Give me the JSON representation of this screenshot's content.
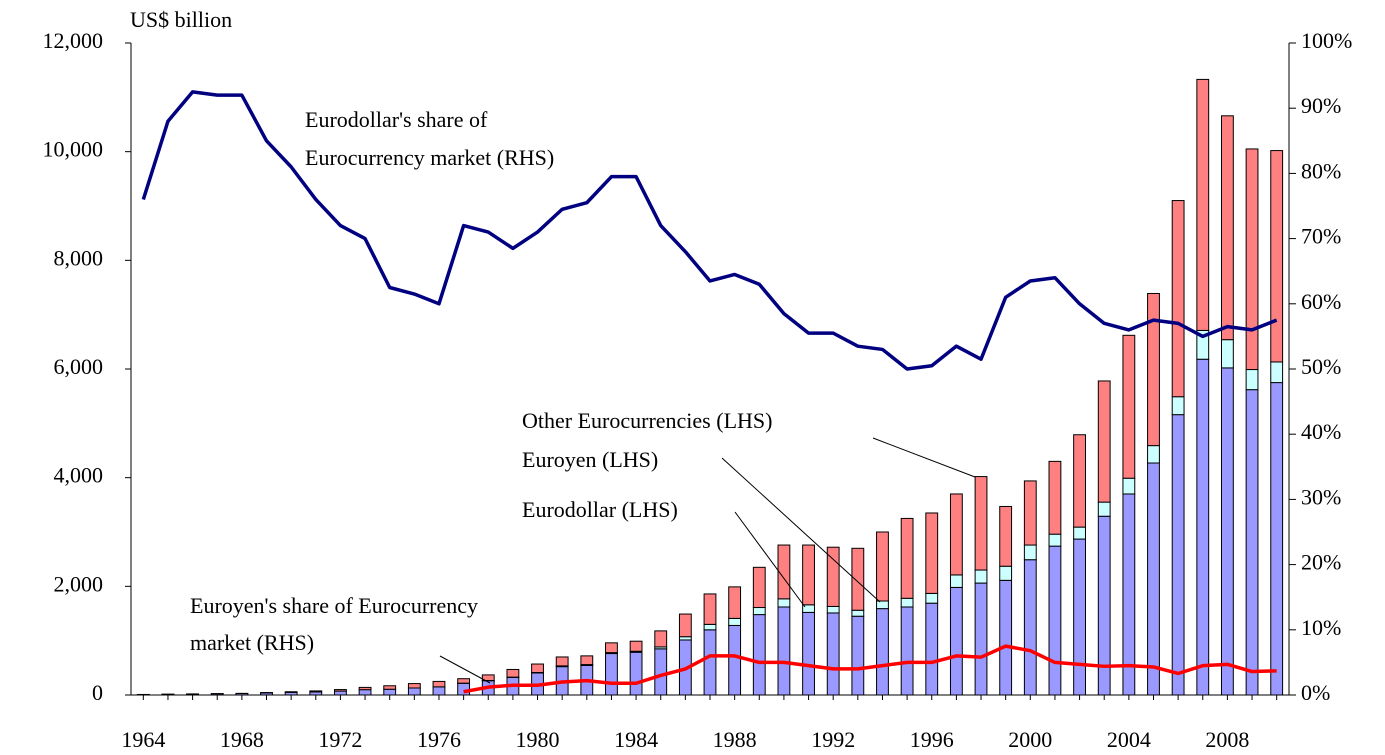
{
  "chart_data": {
    "type": "bar",
    "y_label": "US$ billion",
    "categories": [
      "1964",
      null,
      null,
      null,
      "1968",
      null,
      null,
      null,
      "1972",
      null,
      null,
      null,
      "1976",
      null,
      null,
      null,
      "1980",
      null,
      null,
      null,
      "1984",
      null,
      null,
      null,
      "1988",
      null,
      null,
      null,
      "1992",
      null,
      null,
      null,
      "1996",
      null,
      null,
      null,
      "2000",
      null,
      null,
      null,
      "2004",
      null,
      null,
      null,
      "2008",
      null,
      null
    ],
    "series": [
      {
        "name": "Eurodollar (LHS)",
        "color": "#9999ff",
        "axis": "y",
        "kind": "bar",
        "values": [
          8,
          13,
          18,
          23,
          27,
          38,
          49,
          57,
          72,
          98,
          106,
          129,
          150,
          216,
          263,
          322,
          405,
          522,
          544,
          763,
          787,
          850,
          1013,
          1200,
          1280,
          1480,
          1620,
          1520,
          1510,
          1450,
          1590,
          1620,
          1690,
          1980,
          2060,
          2110,
          2490,
          2740,
          2870,
          3290,
          3700,
          4270,
          5160,
          6180,
          6020,
          5620,
          5750
        ]
      },
      {
        "name": "Euroyen (LHS)",
        "color": "#ccffff",
        "axis": "y",
        "kind": "bar",
        "values": [
          0,
          0,
          0,
          0,
          0,
          0,
          0,
          0,
          0,
          0,
          0,
          0,
          0,
          2,
          4,
          7,
          9,
          14,
          16,
          17,
          18,
          35,
          60,
          100,
          130,
          130,
          150,
          140,
          120,
          110,
          140,
          160,
          180,
          230,
          240,
          260,
          270,
          220,
          220,
          260,
          290,
          320,
          330,
          530,
          520,
          370,
          380
        ]
      },
      {
        "name": "Other Eurocurrencies (LHS)",
        "color": "#ff8080",
        "axis": "y",
        "kind": "bar",
        "values": [
          2,
          2,
          2,
          2,
          3,
          7,
          11,
          18,
          28,
          42,
          64,
          81,
          100,
          82,
          103,
          141,
          156,
          164,
          160,
          180,
          185,
          295,
          417,
          560,
          580,
          740,
          990,
          1100,
          1090,
          1140,
          1270,
          1470,
          1480,
          1490,
          1720,
          1100,
          1180,
          1340,
          1700,
          2230,
          2630,
          2800,
          3610,
          4620,
          4120,
          4060,
          3890
        ]
      },
      {
        "name": [
          "Eurodollar's share of",
          "Eurocurrency market (RHS)"
        ],
        "color": "#000080",
        "axis": "y2",
        "kind": "line",
        "values": [
          76,
          88,
          92.5,
          92,
          92,
          85,
          81,
          76,
          72,
          70,
          62.5,
          61.5,
          60,
          72,
          71,
          68.5,
          71,
          74.5,
          75.5,
          79.5,
          79.5,
          72,
          68,
          63.5,
          64.5,
          63,
          58.5,
          55.5,
          55.5,
          53.5,
          53,
          50,
          50.5,
          53.5,
          51.5,
          61,
          63.5,
          64,
          60,
          57,
          56,
          57.5,
          57,
          55,
          56.5,
          56,
          57.5
        ]
      },
      {
        "name": [
          "Euroyen's share of Eurocurrency",
          "market (RHS)"
        ],
        "color": "#ff0000",
        "axis": "y2",
        "kind": "line",
        "values": [
          null,
          null,
          null,
          null,
          null,
          null,
          null,
          null,
          null,
          null,
          null,
          null,
          null,
          0.5,
          1.2,
          1.5,
          1.5,
          2,
          2.2,
          1.8,
          1.8,
          3,
          4,
          6,
          6,
          5,
          5,
          4.5,
          4,
          4,
          4.5,
          5,
          5,
          6,
          5.8,
          7.5,
          6.8,
          5,
          4.7,
          4.4,
          4.5,
          4.3,
          3.3,
          4.5,
          4.7,
          3.6,
          3.7
        ]
      }
    ],
    "ylim": [
      0,
      12000
    ],
    "yticks": [
      0,
      {
        "value": 2000,
        "label": "2,000"
      },
      {
        "value": 4000,
        "label": "4,000"
      },
      {
        "value": 6000,
        "label": "6,000"
      },
      {
        "value": 8000,
        "label": "8,000"
      },
      {
        "value": 10000,
        "label": "10,000"
      },
      {
        "value": 12000,
        "label": "12,000"
      }
    ],
    "y2lim": [
      0,
      100
    ],
    "y2ticks": [
      {
        "value": 0,
        "label": "0%"
      },
      {
        "value": 10,
        "label": "10%"
      },
      {
        "value": 20,
        "label": "20%"
      },
      {
        "value": 30,
        "label": "30%"
      },
      {
        "value": 40,
        "label": "40%"
      },
      {
        "value": 50,
        "label": "50%"
      },
      {
        "value": 60,
        "label": "60%"
      },
      {
        "value": 70,
        "label": "70%"
      },
      {
        "value": 80,
        "label": "80%"
      },
      {
        "value": 90,
        "label": "90%"
      },
      {
        "value": 100,
        "label": "100%"
      }
    ],
    "grid": false
  }
}
